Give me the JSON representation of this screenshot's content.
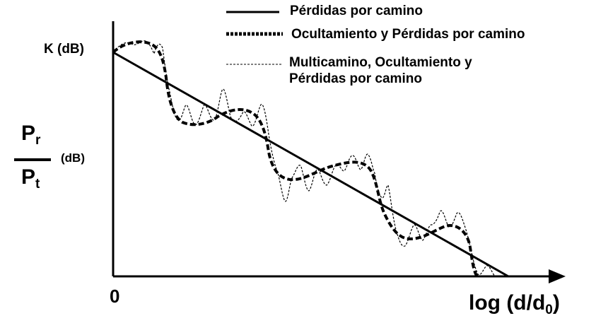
{
  "legend": {
    "path_loss": "Pérdidas por camino",
    "shadowing": "Ocultamiento y Pérdidas por camino",
    "multipath_line1": "Multicamino, Ocultamiento y",
    "multipath_line2": "Pérdidas por camino"
  },
  "y_axis": {
    "k_label": "K (dB)",
    "ratio_num_base": "P",
    "ratio_num_sub": "r",
    "ratio_den_base": "P",
    "ratio_den_sub": "t",
    "unit": "(dB)"
  },
  "x_axis": {
    "origin": "0",
    "label_main": "log (d/d",
    "label_sub": "0",
    "label_end": ")"
  },
  "colors": {
    "ink": "#000000",
    "background": "#ffffff"
  }
}
